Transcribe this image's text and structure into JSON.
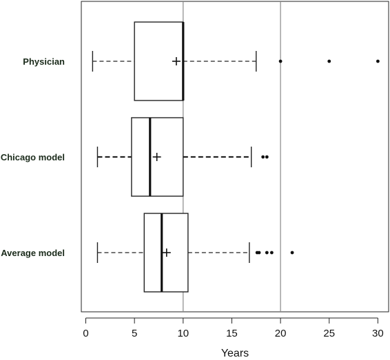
{
  "chart_data": {
    "type": "boxplot",
    "orientation": "horizontal",
    "xlabel": "Years",
    "xlim": [
      -0.5,
      31
    ],
    "xticks": [
      0,
      5,
      10,
      15,
      20,
      25,
      30
    ],
    "reference_lines": [
      10,
      20
    ],
    "grid": false,
    "series": [
      {
        "name": "Physician",
        "whisker_low": 0.7,
        "q1": 5.0,
        "median": 10.0,
        "q3": 10.0,
        "whisker_high": 17.5,
        "mean": 9.3,
        "outliers": [
          20.0,
          25.0,
          30.0
        ],
        "whisker_style": "dashed"
      },
      {
        "name": "Chicago model",
        "whisker_low": 1.2,
        "q1": 4.7,
        "median": 6.6,
        "q3": 10.0,
        "whisker_high": 17.0,
        "mean": 7.3,
        "outliers": [
          18.2,
          18.6
        ],
        "whisker_style": "dashed-bold"
      },
      {
        "name": "Average model",
        "whisker_low": 1.2,
        "q1": 6.0,
        "median": 7.8,
        "q3": 10.5,
        "whisker_high": 16.8,
        "mean": 8.3,
        "outliers": [
          17.6,
          17.8,
          18.6,
          19.1,
          21.2
        ],
        "whisker_style": "dashed"
      }
    ]
  }
}
